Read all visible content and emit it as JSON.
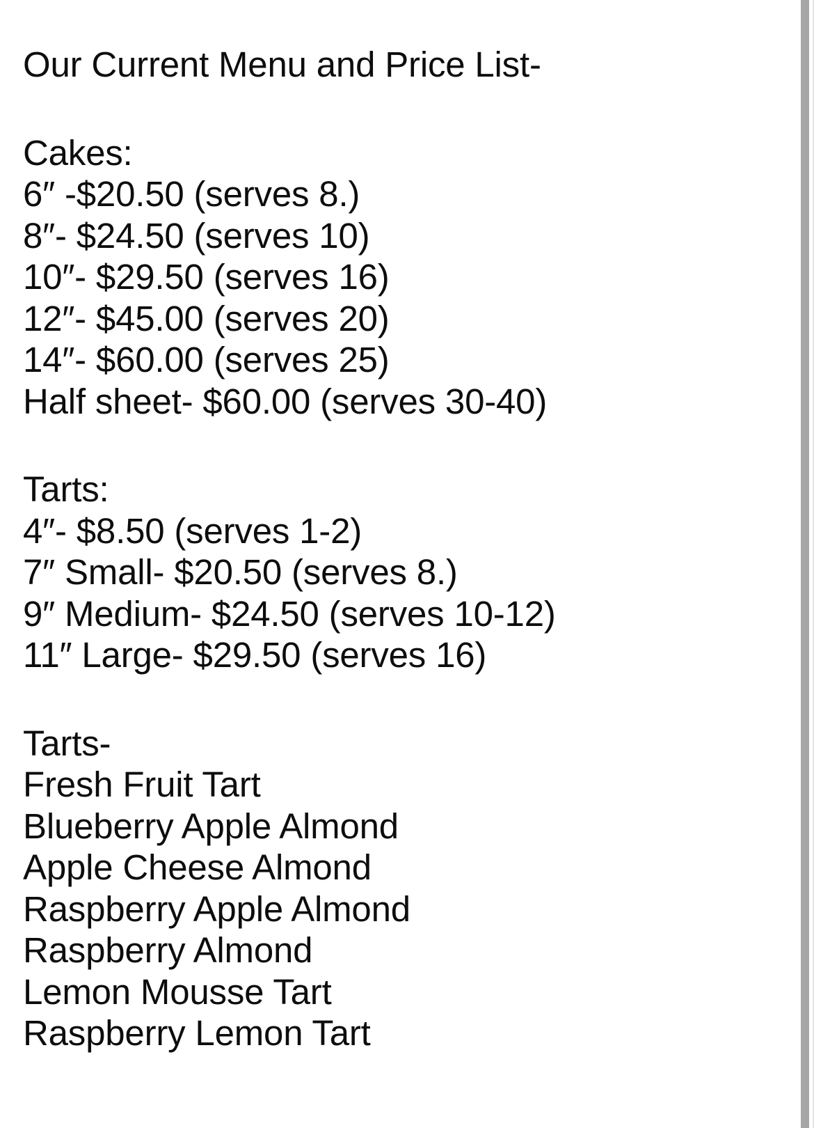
{
  "page": {
    "title": "Our Current Menu and Price List-",
    "sections": [
      {
        "heading": "Cakes:",
        "items": [
          "6″ -$20.50 (serves 8.)",
          "8″- $24.50 (serves 10)",
          "10″- $29.50 (serves 16)",
          "12″- $45.00 (serves 20)",
          "14″- $60.00 (serves 25)",
          "Half sheet- $60.00 (serves 30-40)"
        ]
      },
      {
        "heading": "Tarts:",
        "items": [
          "4″- $8.50 (serves 1-2)",
          "7″ Small- $20.50 (serves 8.)",
          "9″ Medium- $24.50 (serves 10-12)",
          "11″ Large- $29.50 (serves 16)"
        ]
      },
      {
        "heading": "Tarts-",
        "items": [
          "Fresh Fruit Tart",
          "Blueberry Apple Almond",
          "Apple Cheese Almond",
          "Raspberry Apple Almond",
          "Raspberry Almond",
          "Lemon Mousse Tart",
          "Raspberry Lemon Tart"
        ]
      }
    ]
  },
  "colors": {
    "text": "#0d0d0d",
    "background": "#ffffff",
    "scrollbar": "#a6a6a6",
    "edge_line": "#e3e3e3"
  }
}
